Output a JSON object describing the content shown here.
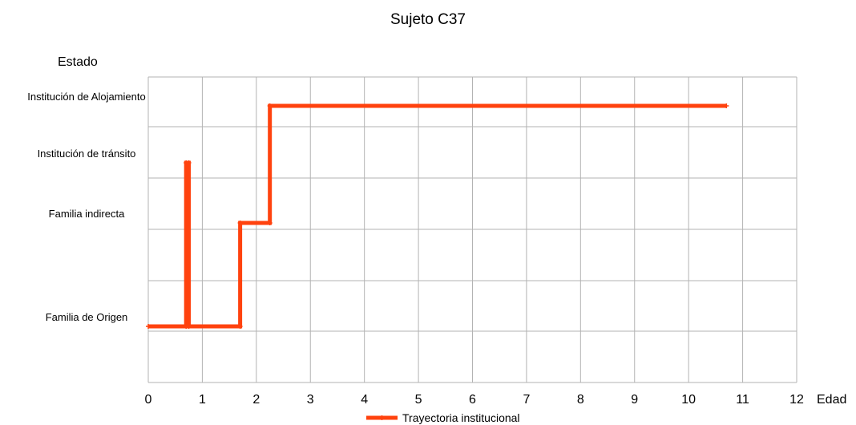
{
  "chart_data": {
    "type": "line",
    "title": "Sujeto C37",
    "xlabel": "Edad",
    "ylabel": "Estado",
    "xlim": [
      0,
      12
    ],
    "x_ticks": [
      "0",
      "1",
      "2",
      "3",
      "4",
      "5",
      "6",
      "7",
      "8",
      "9",
      "10",
      "11",
      "12"
    ],
    "y_categories": [
      "Familia de Origen",
      "Familia indirecta",
      "Institución de tránsito",
      "Institución de Alojamiento"
    ],
    "grid": true,
    "legend_position": "bottom",
    "series": [
      {
        "name": "Trayectoria institucional",
        "color": "#ff420e",
        "points": [
          {
            "x": 0,
            "y": "Familia de Origen"
          },
          {
            "x": 0.7,
            "y": "Familia de Origen"
          },
          {
            "x": 0.7,
            "y": "Institución de tránsito"
          },
          {
            "x": 0.75,
            "y": "Institución de tránsito"
          },
          {
            "x": 0.75,
            "y": "Familia de Origen"
          },
          {
            "x": 1.7,
            "y": "Familia de Origen"
          },
          {
            "x": 1.7,
            "y": "Familia indirecta"
          },
          {
            "x": 2.25,
            "y": "Familia indirecta"
          },
          {
            "x": 2.25,
            "y": "Institución de Alojamiento"
          },
          {
            "x": 10.7,
            "y": "Institución de Alojamiento"
          }
        ]
      }
    ]
  }
}
